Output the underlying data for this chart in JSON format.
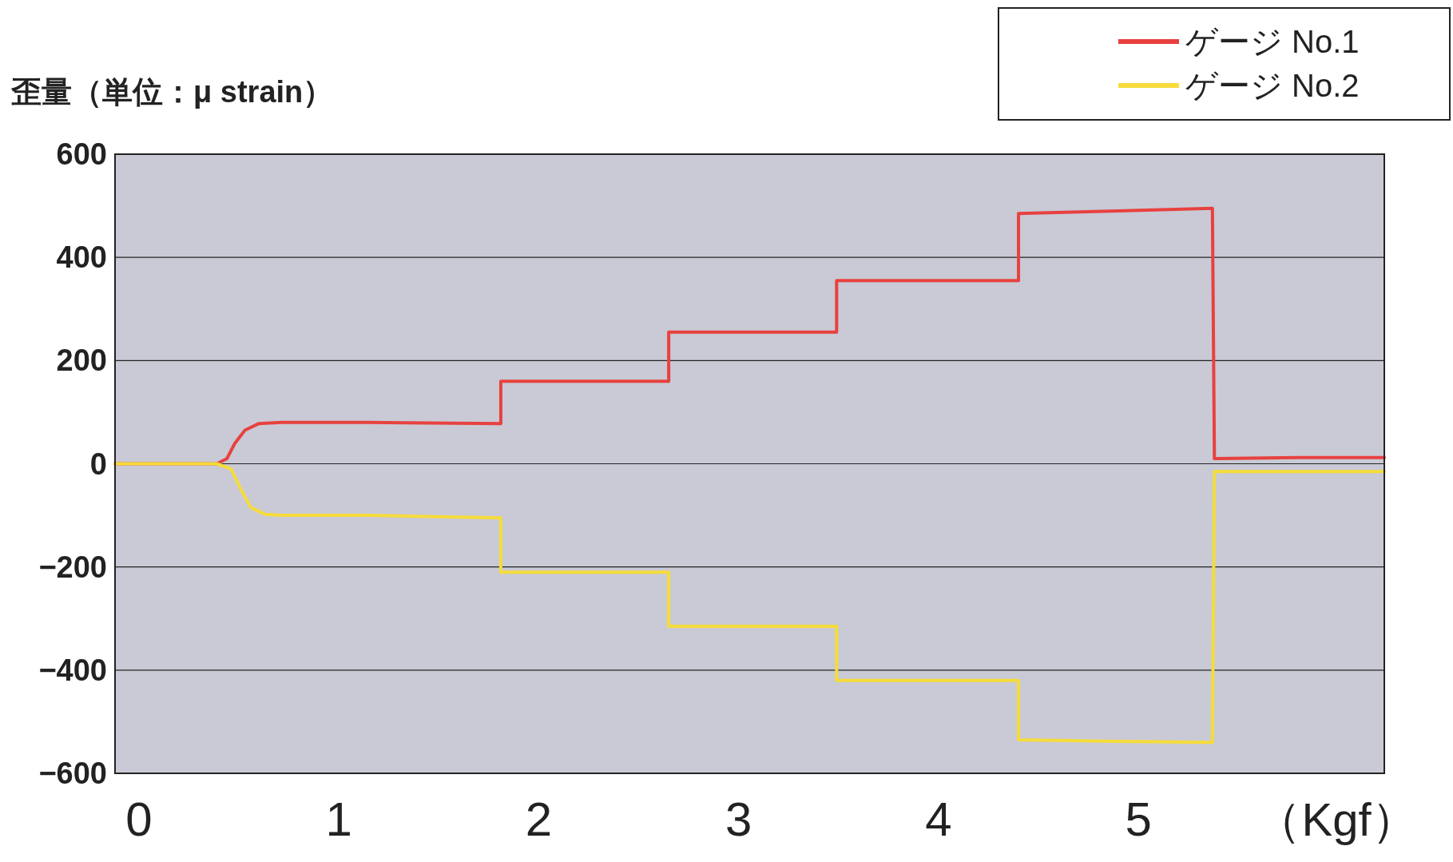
{
  "chart_data": {
    "type": "line",
    "ylabel": "歪量（単位：μ strain）",
    "xlabel": "（Kgf）",
    "xlim": [
      -0.12,
      6.23
    ],
    "xticks": [
      0,
      1,
      2,
      3,
      4,
      5
    ],
    "ylim": [
      -600,
      600
    ],
    "yticks": [
      -600,
      -400,
      -200,
      0,
      200,
      400,
      600
    ],
    "grid": "y",
    "legend": "top right",
    "line_style": "solid",
    "marker": "none",
    "series": [
      {
        "name": "ゲージ No.1",
        "color": "#e8413f",
        "x": [
          -0.12,
          0.39,
          0.44,
          0.48,
          0.53,
          0.6,
          0.71,
          1.15,
          1.81,
          1.81,
          2.17,
          2.65,
          2.65,
          3.06,
          3.49,
          3.49,
          3.94,
          4.4,
          4.4,
          4.9,
          5.37,
          5.38,
          5.79,
          6.23
        ],
        "values": [
          0,
          0,
          10,
          40,
          65,
          78,
          80,
          80,
          78,
          160,
          160,
          160,
          255,
          255,
          255,
          355,
          355,
          355,
          485,
          490,
          495,
          10,
          12,
          12
        ]
      },
      {
        "name": "ゲージ No.2",
        "color": "#f5dc3a",
        "x": [
          -0.12,
          0.39,
          0.46,
          0.51,
          0.56,
          0.63,
          0.71,
          1.15,
          1.81,
          1.81,
          2.17,
          2.65,
          2.65,
          3.06,
          3.49,
          3.49,
          3.94,
          4.4,
          4.4,
          4.9,
          5.37,
          5.38,
          5.79,
          6.23
        ],
        "values": [
          0,
          0,
          -10,
          -50,
          -85,
          -98,
          -100,
          -100,
          -105,
          -210,
          -210,
          -210,
          -315,
          -315,
          -315,
          -420,
          -420,
          -420,
          -535,
          -538,
          -540,
          -15,
          -15,
          -15
        ]
      }
    ]
  }
}
